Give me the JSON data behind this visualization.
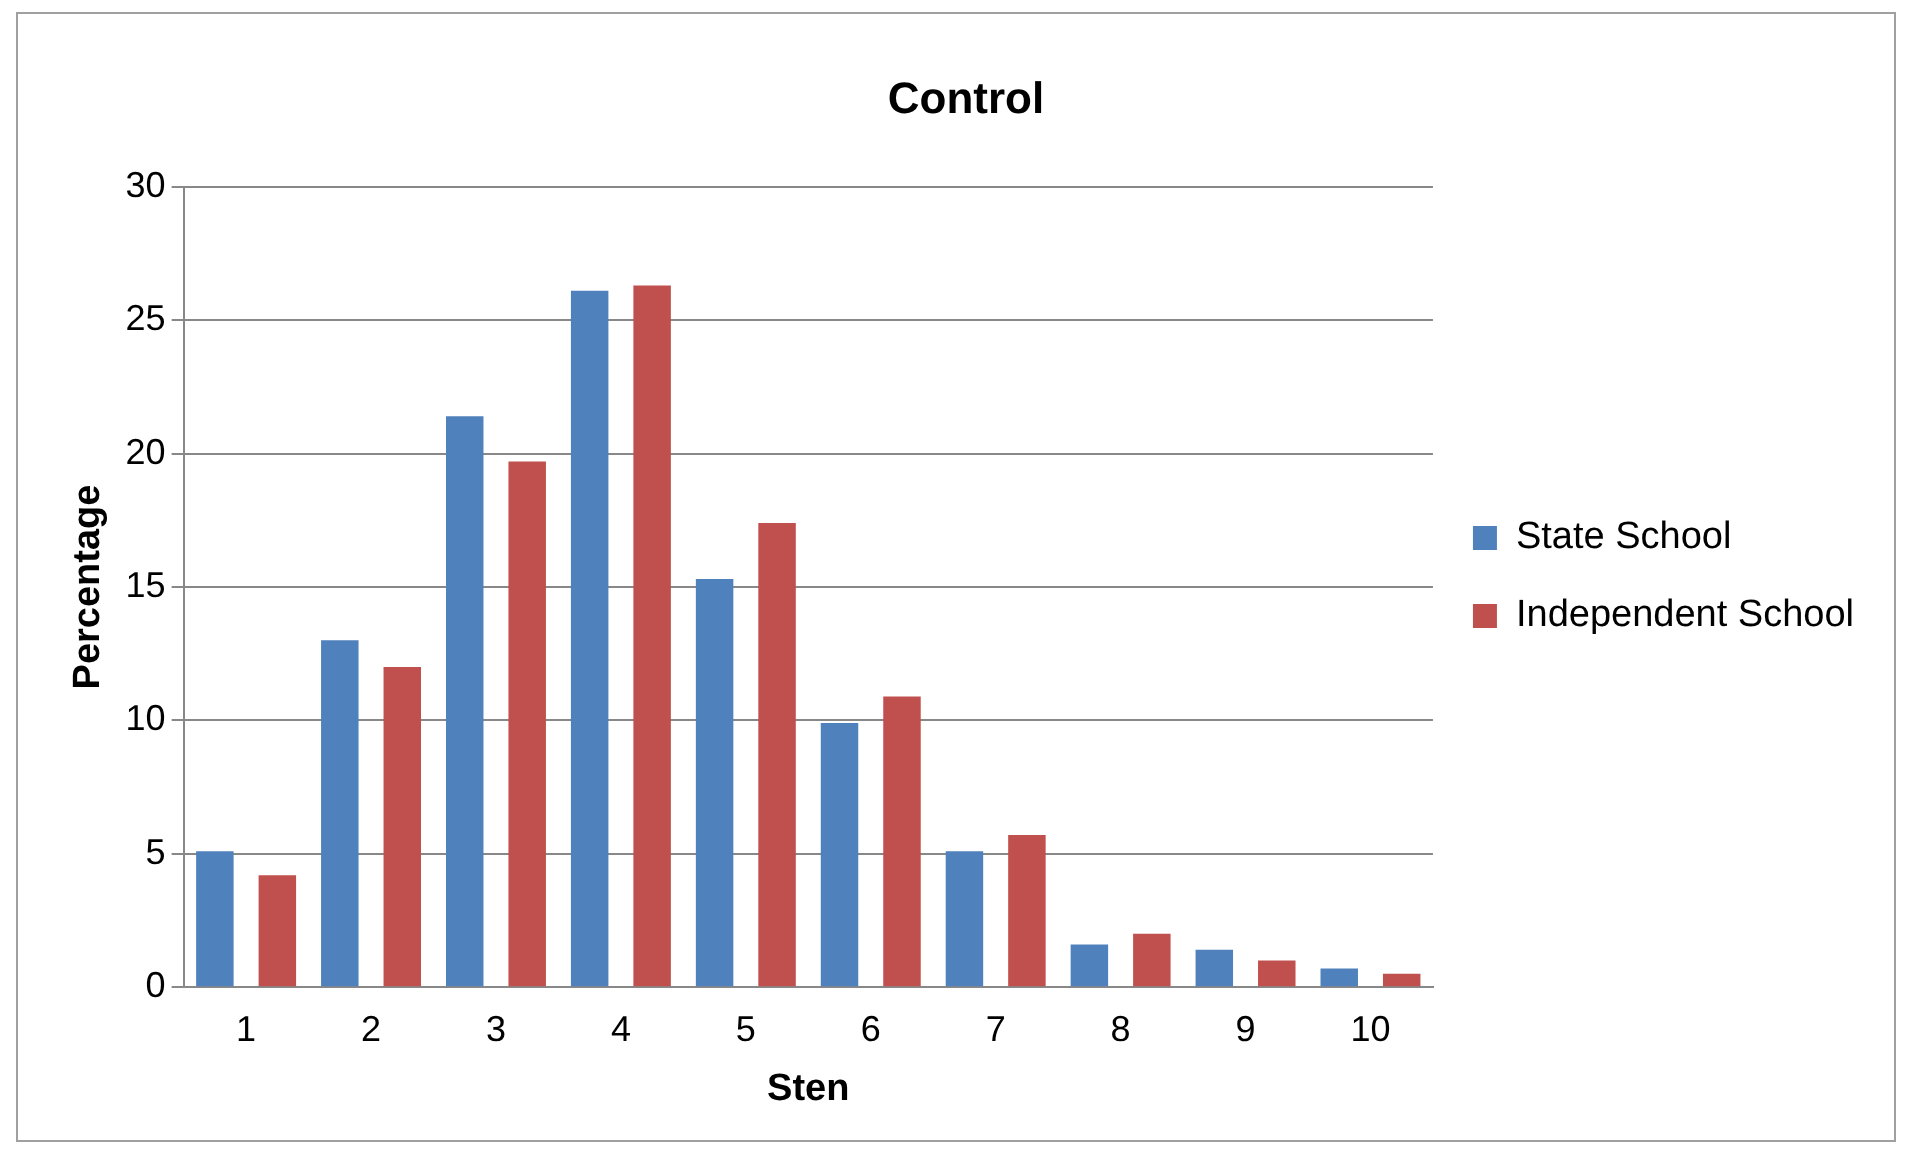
{
  "chart_data": {
    "type": "bar",
    "title": "Control",
    "xlabel": "Sten",
    "ylabel": "Percentage",
    "categories": [
      "1",
      "2",
      "3",
      "4",
      "5",
      "6",
      "7",
      "8",
      "9",
      "10"
    ],
    "series": [
      {
        "name": "State School",
        "color": "#4f81bd",
        "values": [
          5.1,
          13.0,
          21.4,
          26.1,
          15.3,
          9.9,
          5.1,
          1.6,
          1.4,
          0.7
        ]
      },
      {
        "name": "Independent School",
        "color": "#c0504d",
        "values": [
          4.2,
          12.0,
          19.7,
          26.3,
          17.4,
          10.9,
          5.7,
          2.0,
          1.0,
          0.5
        ]
      }
    ],
    "ylim": [
      0,
      30
    ],
    "yticks": [
      0,
      5,
      10,
      15,
      20,
      25,
      30
    ],
    "grid": "y",
    "legend": "right"
  }
}
